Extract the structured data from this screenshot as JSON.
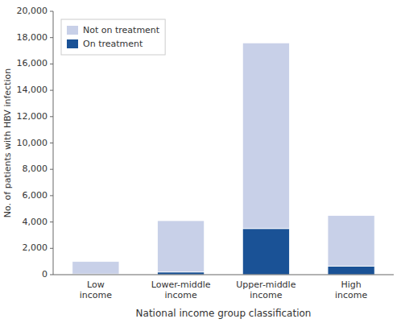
{
  "chart_data": {
    "type": "bar",
    "stacked": true,
    "categories": [
      "Low\nincome",
      "Lower-middle\nincome",
      "Upper-middle\nincome",
      "High\nincome"
    ],
    "series": [
      {
        "name": "On treatment",
        "color": "#1a5296",
        "values": [
          50,
          200,
          3500,
          650
        ]
      },
      {
        "name": "Not on treatment",
        "color": "#c8d0e8",
        "values": [
          950,
          3900,
          14100,
          3850
        ]
      }
    ],
    "xlabel": "National income group classification",
    "ylabel": "No. of patients with HBV infection",
    "ylim": [
      0,
      20000
    ],
    "yticks": [
      0,
      {
        "value": 2000,
        "label": "2,000"
      },
      {
        "value": 4000,
        "label": "4,000"
      },
      {
        "value": 6000,
        "label": "6,000"
      },
      {
        "value": 8000,
        "label": "8,000"
      },
      {
        "value": 10000,
        "label": "10,000"
      },
      {
        "value": 12000,
        "label": "12,000"
      },
      {
        "value": 14000,
        "label": "14,000"
      },
      {
        "value": 16000,
        "label": "16,000"
      },
      {
        "value": 18000,
        "label": "18,000"
      },
      {
        "value": 20000,
        "label": "20,000"
      }
    ],
    "grid": false,
    "legend": "upper left"
  }
}
